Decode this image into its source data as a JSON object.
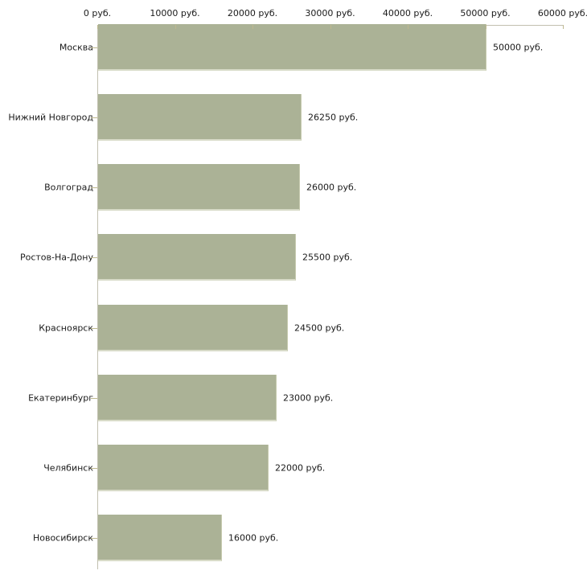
{
  "chart_data": {
    "type": "bar",
    "orientation": "horizontal",
    "categories": [
      "Москва",
      "Нижний Новгород",
      "Волгоград",
      "Ростов-На-Дону",
      "Красноярск",
      "Екатеринбург",
      "Челябинск",
      "Новосибирск"
    ],
    "values": [
      50000,
      26250,
      26000,
      25500,
      24500,
      23000,
      22000,
      16000
    ],
    "value_labels": [
      "50000 руб.",
      "26250 руб.",
      "26000 руб.",
      "25500 руб.",
      "24500 руб.",
      "23000 руб.",
      "22000 руб.",
      "16000 руб."
    ],
    "x_ticks": [
      0,
      10000,
      20000,
      30000,
      40000,
      50000,
      60000
    ],
    "x_tick_labels": [
      "0 руб.",
      "10000 руб.",
      "20000 руб.",
      "30000 руб.",
      "40000 руб.",
      "50000 руб.",
      "60000 руб."
    ],
    "xlim": [
      0,
      60000
    ],
    "unit": "руб.",
    "title": "",
    "xlabel": "",
    "ylabel": "",
    "grid": false,
    "legend": false,
    "axis_position": "top",
    "colors": {
      "bar_fill": "#abb296",
      "bar_edge_bottom": "#d8dbc8",
      "bar_edge_right": "#c6caae",
      "axis_line": "#c2c0b0",
      "tick": "#beb88f",
      "text": "#1a1a1a",
      "background": "#ffffff"
    }
  }
}
